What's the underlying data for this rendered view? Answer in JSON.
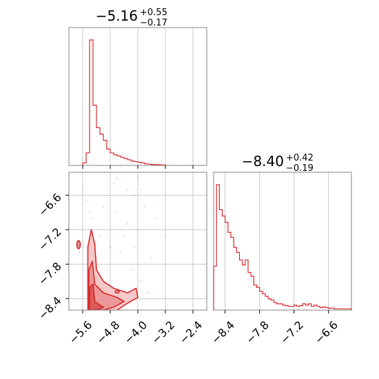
{
  "chart_data": [
    {
      "type": "histogram",
      "panel": "top-left",
      "title": {
        "median": "−5.16",
        "plus": "+0.55",
        "minus": "−0.17"
      },
      "xlim": [
        -6.0,
        -2.0
      ],
      "bin_edges": [
        -5.6,
        -5.5,
        -5.4,
        -5.3,
        -5.2,
        -5.1,
        -5.0,
        -4.9,
        -4.8,
        -4.7,
        -4.6,
        -4.5,
        -4.4,
        -4.3,
        -4.2,
        -4.1,
        -4.0,
        -3.9,
        -3.8,
        -3.7,
        -3.6,
        -3.5,
        -3.4,
        -3.3,
        -3.2
      ],
      "counts": [
        0.02,
        0.1,
        1.0,
        0.48,
        0.3,
        0.25,
        0.2,
        0.13,
        0.1,
        0.085,
        0.075,
        0.065,
        0.055,
        0.045,
        0.035,
        0.03,
        0.025,
        0.02,
        0.012,
        0.01,
        0.006,
        0.005,
        0.004,
        0.003
      ],
      "color": "#d62728",
      "grid": true
    },
    {
      "type": "histogram",
      "panel": "bottom-right",
      "title": {
        "median": "−8.40",
        "plus": "+0.42",
        "minus": "−0.19"
      },
      "xlim": [
        -8.6,
        -6.2
      ],
      "x_ticks": [
        -8.4,
        -7.8,
        -7.2,
        -6.6
      ],
      "x_tick_labels": [
        "−8.4",
        "−7.8",
        "−7.2",
        "−6.6"
      ],
      "bin_edges": [
        -8.6,
        -8.55,
        -8.5,
        -8.45,
        -8.4,
        -8.35,
        -8.3,
        -8.25,
        -8.2,
        -8.15,
        -8.1,
        -8.05,
        -8.0,
        -7.95,
        -7.9,
        -7.85,
        -7.8,
        -7.75,
        -7.7,
        -7.65,
        -7.6,
        -7.55,
        -7.5,
        -7.45,
        -7.4,
        -7.35,
        -7.3,
        -7.25,
        -7.2,
        -7.15,
        -7.1,
        -7.05,
        -7.0,
        -6.95,
        -6.9,
        -6.85,
        -6.8,
        -6.75,
        -6.7,
        -6.65,
        -6.6,
        -6.55,
        -6.5,
        -6.45,
        -6.4,
        -6.35,
        -6.3,
        -6.25,
        -6.2
      ],
      "counts": [
        0.35,
        1.0,
        0.8,
        0.75,
        0.7,
        0.62,
        0.58,
        0.5,
        0.46,
        0.4,
        0.36,
        0.4,
        0.3,
        0.27,
        0.2,
        0.18,
        0.15,
        0.13,
        0.11,
        0.09,
        0.08,
        0.06,
        0.05,
        0.05,
        0.04,
        0.035,
        0.03,
        0.03,
        0.04,
        0.03,
        0.035,
        0.05,
        0.04,
        0.05,
        0.03,
        0.04,
        0.03,
        0.02,
        0.025,
        0.02,
        0.015,
        0.015,
        0.01,
        0.01,
        0.01,
        0.01,
        0.01,
        0.01
      ],
      "color": "#d62728",
      "grid": true
    },
    {
      "type": "contour-scatter",
      "panel": "bottom-left",
      "xlim": [
        -6.0,
        -2.0
      ],
      "ylim": [
        -8.6,
        -6.2
      ],
      "x_ticks": [
        -5.6,
        -4.8,
        -4.0,
        -3.2,
        -2.4
      ],
      "x_tick_labels": [
        "−5.6",
        "−4.8",
        "−4.0",
        "−3.2",
        "−2.4"
      ],
      "y_ticks": [
        -8.4,
        -7.8,
        -7.2,
        -6.6
      ],
      "y_tick_labels": [
        "−8.4",
        "−7.8",
        "−7.2",
        "−6.6"
      ],
      "contour_levels": [
        {
          "fill": "#f6c8c8",
          "outline": [
            [
              -5.45,
              -8.62
            ],
            [
              -5.45,
              -7.5
            ],
            [
              -5.35,
              -7.2
            ],
            [
              -5.25,
              -7.45
            ],
            [
              -5.2,
              -7.9
            ],
            [
              -5.0,
              -8.1
            ],
            [
              -4.7,
              -8.22
            ],
            [
              -4.3,
              -8.3
            ],
            [
              -4.05,
              -8.22
            ],
            [
              -4.0,
              -8.38
            ],
            [
              -4.3,
              -8.48
            ],
            [
              -4.6,
              -8.6
            ],
            [
              -5.0,
              -8.62
            ]
          ]
        },
        {
          "fill": "#ec9898",
          "outline": [
            [
              -5.42,
              -8.6
            ],
            [
              -5.42,
              -7.9
            ],
            [
              -5.32,
              -7.75
            ],
            [
              -5.25,
              -8.15
            ],
            [
              -5.0,
              -8.3
            ],
            [
              -4.6,
              -8.38
            ],
            [
              -4.4,
              -8.45
            ],
            [
              -4.7,
              -8.55
            ],
            [
              -5.0,
              -8.6
            ]
          ]
        },
        {
          "fill": "#de5a5a",
          "outline": [
            [
              -5.4,
              -8.6
            ],
            [
              -5.4,
              -8.2
            ],
            [
              -5.3,
              -8.15
            ],
            [
              -5.25,
              -8.45
            ],
            [
              -5.0,
              -8.55
            ],
            [
              -5.2,
              -8.6
            ]
          ]
        }
      ],
      "scatter_points": [
        [
          -5.5,
          -6.7
        ],
        [
          -5.3,
          -7.0
        ],
        [
          -4.9,
          -6.6
        ],
        [
          -4.6,
          -6.9
        ],
        [
          -4.3,
          -7.1
        ],
        [
          -4.1,
          -6.6
        ],
        [
          -3.9,
          -6.5
        ],
        [
          -4.0,
          -6.3
        ],
        [
          -3.2,
          -7.3
        ],
        [
          -3.6,
          -7.7
        ],
        [
          -4.8,
          -7.5
        ],
        [
          -4.5,
          -7.6
        ],
        [
          -5.1,
          -7.3
        ],
        [
          -5.6,
          -6.5
        ],
        [
          -5.7,
          -7.6
        ],
        [
          -4.2,
          -7.9
        ],
        [
          -3.9,
          -8.1
        ],
        [
          -3.7,
          -8.3
        ],
        [
          -4.4,
          -7.3
        ],
        [
          -4.7,
          -6.4
        ],
        [
          -5.0,
          -6.8
        ],
        [
          -3.5,
          -7.0
        ],
        [
          -4.1,
          -7.5
        ],
        [
          -4.9,
          -7.9
        ],
        [
          -5.4,
          -6.9
        ],
        [
          -4.6,
          -6.3
        ],
        [
          -3.8,
          -6.8
        ],
        [
          -4.3,
          -6.5
        ],
        [
          -5.2,
          -7.7
        ],
        [
          -4.0,
          -7.2
        ]
      ],
      "color": "#d62728",
      "grid": true
    }
  ]
}
